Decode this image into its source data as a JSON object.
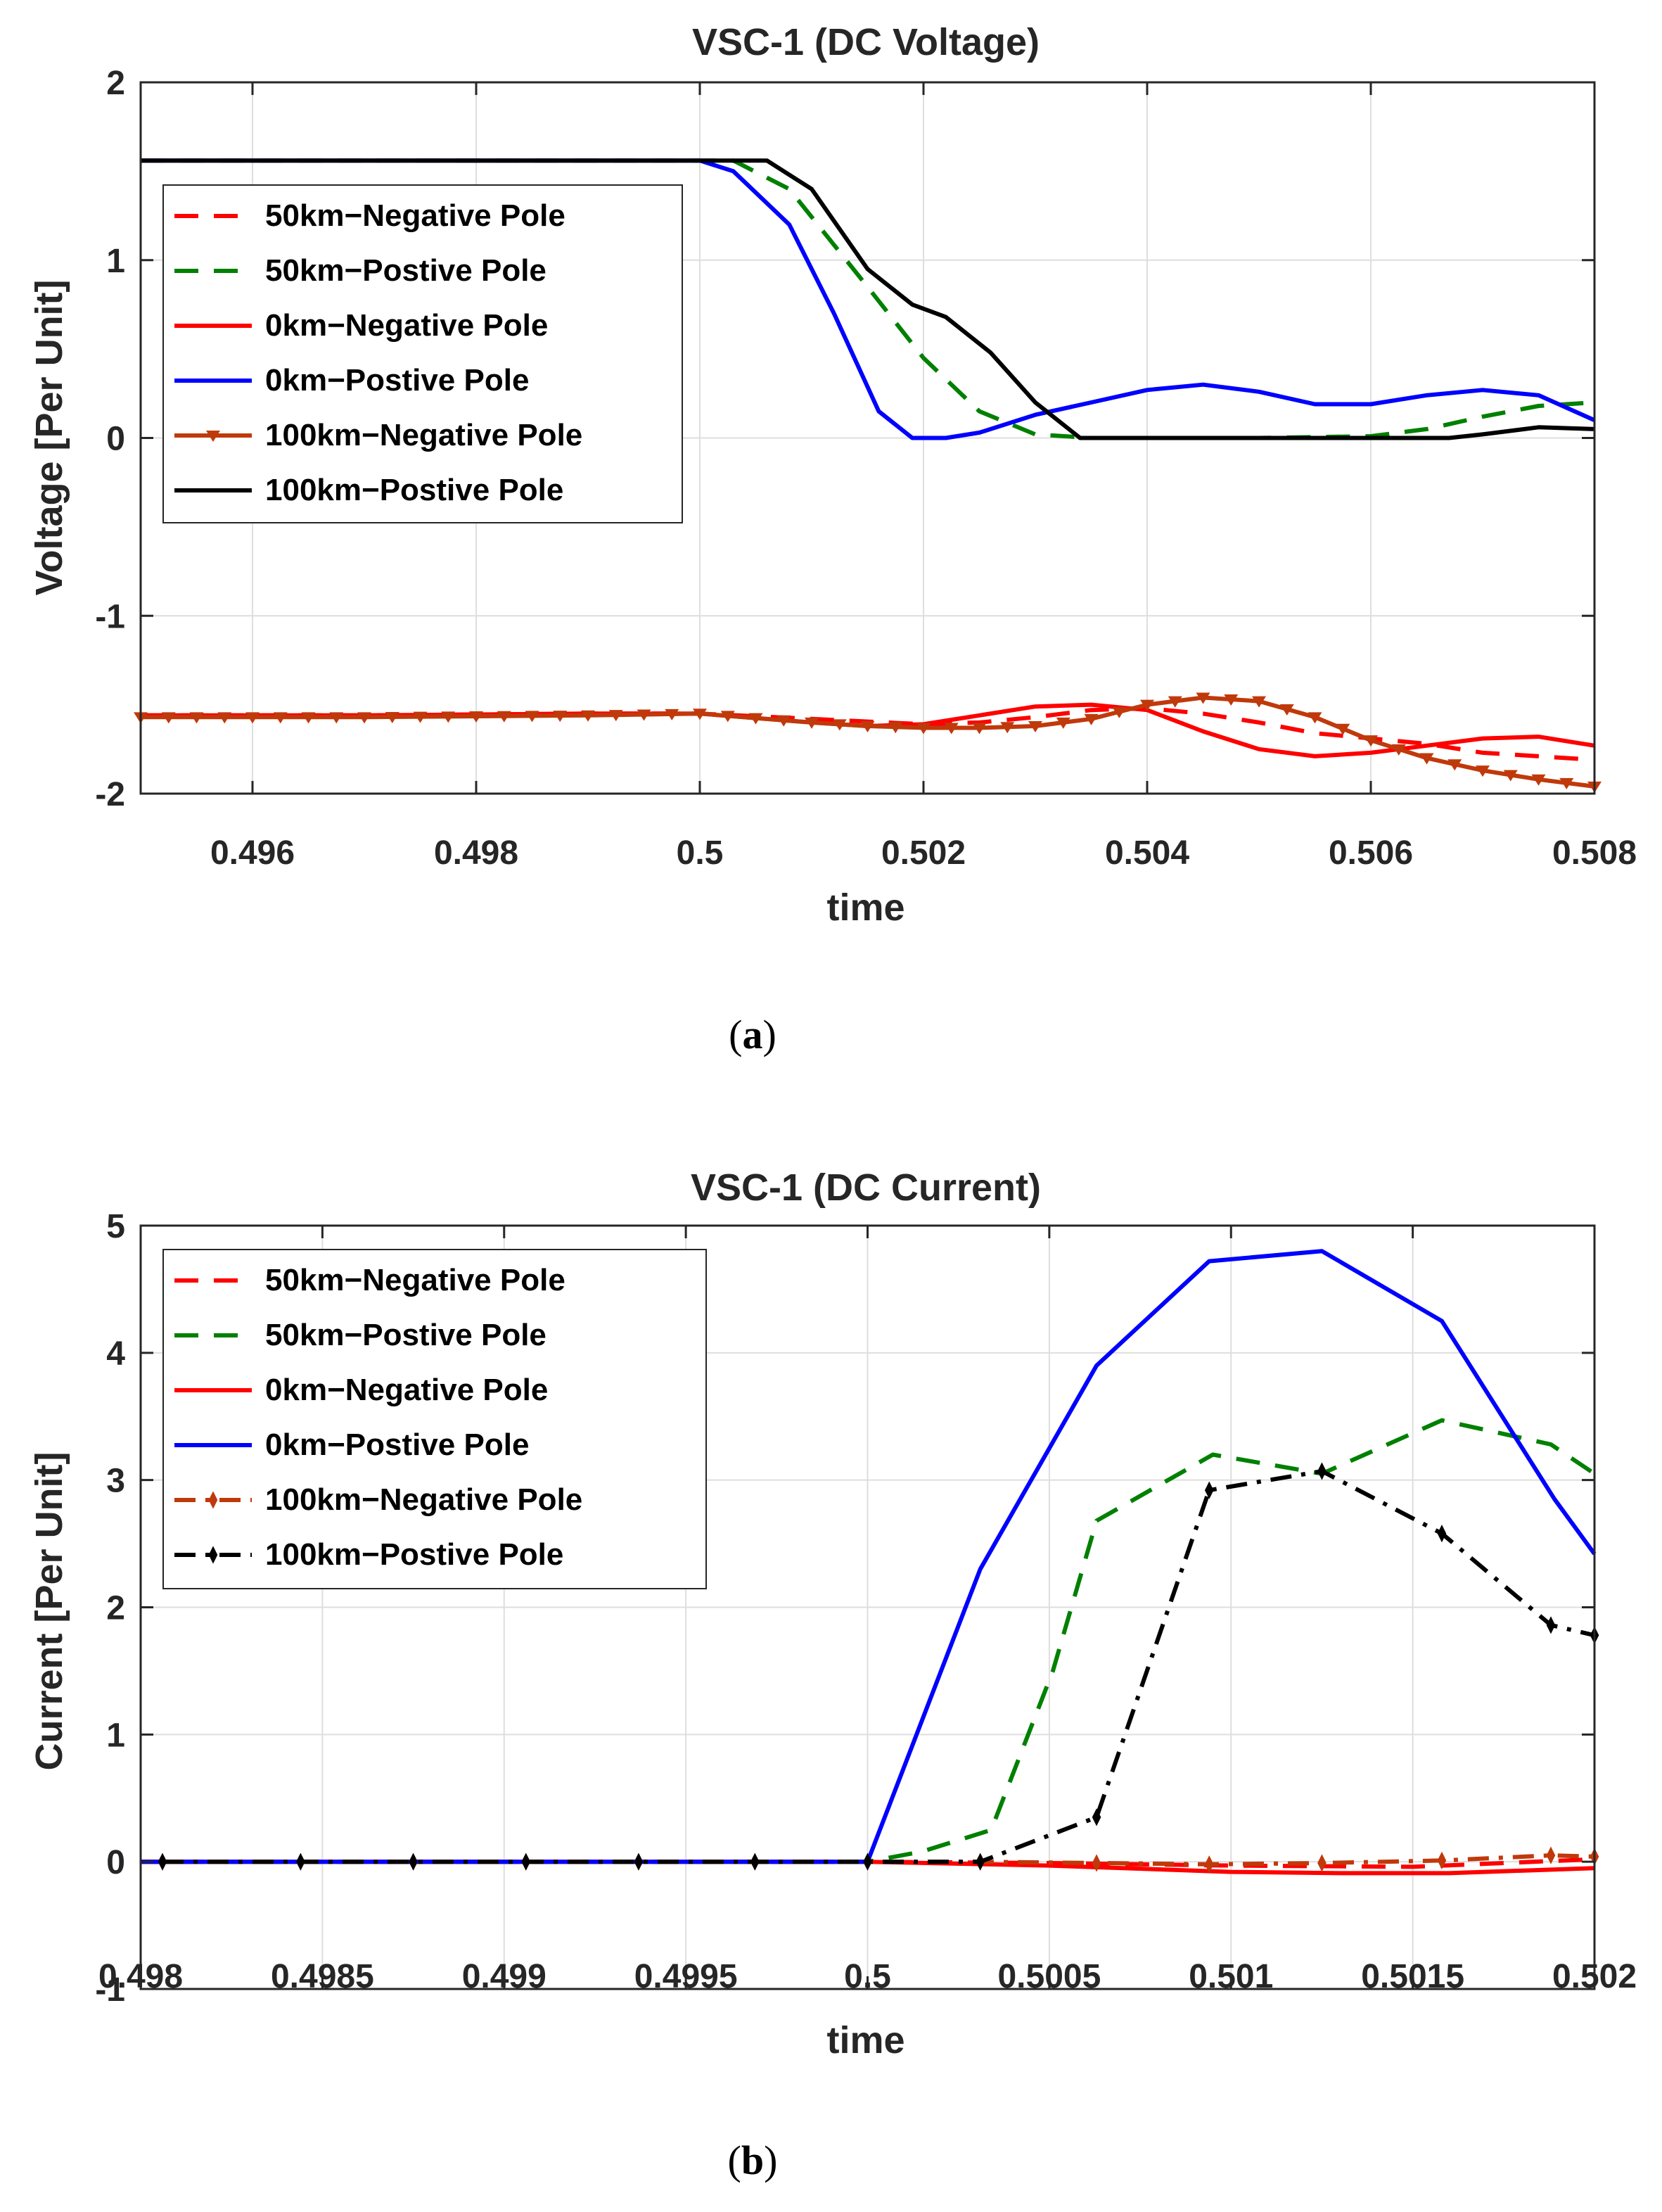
{
  "chart_data": [
    {
      "type": "line",
      "title": "VSC-1 (DC Voltage)",
      "xlabel": "time",
      "ylabel": "Voltage [Per Unit]",
      "xlim": [
        0.495,
        0.508
      ],
      "ylim": [
        -2,
        2
      ],
      "xticks": [
        0.496,
        0.498,
        0.5,
        0.502,
        0.504,
        0.506,
        0.508
      ],
      "xtick_labels": [
        "0.496",
        "0.498",
        "0.5",
        "0.502",
        "0.504",
        "0.506",
        "0.508"
      ],
      "yticks": [
        -2,
        -1,
        0,
        1,
        2
      ],
      "ytick_labels": [
        "-2",
        "-1",
        "0",
        "1",
        "2"
      ],
      "grid": true,
      "legend_position": "top-left",
      "caption": "a",
      "series": [
        {
          "name": "50km−Negative Pole",
          "color": "#ff0000",
          "style": "dashed",
          "x": [
            0.495,
            0.497,
            0.499,
            0.5,
            0.501,
            0.502,
            0.5025,
            0.503,
            0.5035,
            0.504,
            0.5045,
            0.505,
            0.5055,
            0.506,
            0.5065,
            0.507,
            0.5075,
            0.508
          ],
          "y": [
            -1.56,
            -1.56,
            -1.55,
            -1.55,
            -1.58,
            -1.61,
            -1.6,
            -1.57,
            -1.53,
            -1.52,
            -1.55,
            -1.6,
            -1.66,
            -1.69,
            -1.72,
            -1.77,
            -1.79,
            -1.81
          ]
        },
        {
          "name": "50km−Postive Pole",
          "color": "#008000",
          "style": "dashed",
          "x": [
            0.495,
            0.497,
            0.499,
            0.5,
            0.5003,
            0.5008,
            0.5015,
            0.502,
            0.5025,
            0.503,
            0.5035,
            0.504,
            0.505,
            0.506,
            0.5065,
            0.507,
            0.5075,
            0.508
          ],
          "y": [
            1.56,
            1.56,
            1.56,
            1.56,
            1.56,
            1.4,
            0.85,
            0.45,
            0.15,
            0.02,
            0.0,
            0.0,
            0.0,
            0.01,
            0.05,
            0.12,
            0.18,
            0.2
          ]
        },
        {
          "name": "0km−Negative Pole",
          "color": "#ff0000",
          "style": "solid",
          "x": [
            0.495,
            0.497,
            0.499,
            0.5,
            0.501,
            0.5015,
            0.502,
            0.5025,
            0.503,
            0.5035,
            0.504,
            0.5045,
            0.505,
            0.5055,
            0.506,
            0.5065,
            0.507,
            0.5075,
            0.508
          ],
          "y": [
            -1.56,
            -1.56,
            -1.55,
            -1.55,
            -1.6,
            -1.62,
            -1.61,
            -1.56,
            -1.51,
            -1.5,
            -1.53,
            -1.65,
            -1.75,
            -1.79,
            -1.77,
            -1.73,
            -1.69,
            -1.68,
            -1.73
          ]
        },
        {
          "name": "0km−Postive Pole",
          "color": "#0000ff",
          "style": "solid",
          "x": [
            0.495,
            0.497,
            0.499,
            0.5,
            0.5003,
            0.5008,
            0.5012,
            0.5016,
            0.5019,
            0.5022,
            0.5025,
            0.503,
            0.5035,
            0.504,
            0.5045,
            0.505,
            0.5055,
            0.506,
            0.5065,
            0.507,
            0.5075,
            0.508
          ],
          "y": [
            1.56,
            1.56,
            1.56,
            1.56,
            1.5,
            1.2,
            0.7,
            0.15,
            0.0,
            0.0,
            0.03,
            0.13,
            0.2,
            0.27,
            0.3,
            0.26,
            0.19,
            0.19,
            0.24,
            0.27,
            0.24,
            0.1
          ]
        },
        {
          "name": "100km−Negative Pole",
          "color": "#c0390b",
          "style": "solid-marker-triangle",
          "x": [
            0.495,
            0.497,
            0.499,
            0.5,
            0.501,
            0.5015,
            0.502,
            0.5025,
            0.503,
            0.5035,
            0.504,
            0.5045,
            0.505,
            0.5055,
            0.506,
            0.5065,
            0.507,
            0.5075,
            0.508
          ],
          "y": [
            -1.57,
            -1.57,
            -1.56,
            -1.55,
            -1.6,
            -1.62,
            -1.63,
            -1.63,
            -1.62,
            -1.58,
            -1.5,
            -1.46,
            -1.48,
            -1.57,
            -1.7,
            -1.8,
            -1.87,
            -1.92,
            -1.96
          ]
        },
        {
          "name": "100km−Postive Pole",
          "color": "#000000",
          "style": "solid",
          "x": [
            0.495,
            0.497,
            0.499,
            0.5,
            0.5006,
            0.501,
            0.5015,
            0.5019,
            0.5022,
            0.5026,
            0.503,
            0.5034,
            0.504,
            0.505,
            0.506,
            0.5067,
            0.507,
            0.5075,
            0.508
          ],
          "y": [
            1.56,
            1.56,
            1.56,
            1.56,
            1.56,
            1.4,
            0.95,
            0.75,
            0.68,
            0.48,
            0.2,
            0.0,
            0.0,
            0.0,
            0.0,
            0.0,
            0.02,
            0.06,
            0.05
          ]
        }
      ]
    },
    {
      "type": "line",
      "title": "VSC-1 (DC Current)",
      "xlabel": "time",
      "ylabel": "Current [Per Unit]",
      "xlim": [
        0.498,
        0.502
      ],
      "ylim": [
        -1,
        5
      ],
      "xticks": [
        0.498,
        0.4985,
        0.499,
        0.4995,
        0.5,
        0.5005,
        0.501,
        0.5015,
        0.502
      ],
      "xtick_labels": [
        "0.498",
        "0.4985",
        "0.499",
        "0.4995",
        "0.5",
        "0.5005",
        "0.501",
        "0.5015",
        "0.502"
      ],
      "yticks": [
        -1,
        0,
        1,
        2,
        3,
        4,
        5
      ],
      "ytick_labels": [
        "-1",
        "0",
        "1",
        "2",
        "3",
        "4",
        "5"
      ],
      "grid": true,
      "legend_position": "top-left",
      "caption": "b",
      "series": [
        {
          "name": "50km−Negative Pole",
          "color": "#ff0000",
          "style": "dashed",
          "x": [
            0.498,
            0.499,
            0.5,
            0.5005,
            0.501,
            0.5015,
            0.502
          ],
          "y": [
            0,
            0,
            0,
            -0.01,
            -0.03,
            -0.04,
            0.02
          ]
        },
        {
          "name": "50km−Postive Pole",
          "color": "#008000",
          "style": "dashed",
          "x": [
            0.498,
            0.499,
            0.5,
            0.50015,
            0.50034,
            0.50051,
            0.50063,
            0.50095,
            0.50125,
            0.50158,
            0.50188,
            0.502
          ],
          "y": [
            0,
            0,
            0,
            0.08,
            0.25,
            1.5,
            2.68,
            3.2,
            3.05,
            3.47,
            3.28,
            3.05
          ]
        },
        {
          "name": "0km−Negative Pole",
          "color": "#ff0000",
          "style": "solid",
          "x": [
            0.498,
            0.499,
            0.5,
            0.5005,
            0.501,
            0.5013,
            0.5016,
            0.502
          ],
          "y": [
            0,
            0,
            0,
            -0.03,
            -0.08,
            -0.09,
            -0.09,
            -0.05
          ]
        },
        {
          "name": "0km−Postive Pole",
          "color": "#0000ff",
          "style": "solid",
          "x": [
            0.498,
            0.499,
            0.5,
            0.50031,
            0.50063,
            0.50094,
            0.50125,
            0.50158,
            0.50189,
            0.502
          ],
          "y": [
            0,
            0,
            0,
            2.3,
            3.9,
            4.72,
            4.8,
            4.25,
            2.85,
            2.42
          ]
        },
        {
          "name": "100km−Negative Pole",
          "color": "#c0390b",
          "style": "dashdot-marker-diamond",
          "x": [
            0.49806,
            0.49844,
            0.49875,
            0.49906,
            0.49937,
            0.49969,
            0.5,
            0.50031,
            0.50063,
            0.50094,
            0.50125,
            0.50158,
            0.50188,
            0.502
          ],
          "y": [
            0,
            0,
            0,
            0,
            0,
            0,
            0,
            0,
            -0.01,
            -0.02,
            -0.01,
            0.01,
            0.05,
            0.04
          ]
        },
        {
          "name": "100km−Postive Pole",
          "color": "#000000",
          "style": "dashdot-marker-diamond",
          "x": [
            0.49806,
            0.49844,
            0.49875,
            0.49906,
            0.49937,
            0.49969,
            0.5,
            0.50031,
            0.50063,
            0.50094,
            0.50125,
            0.50158,
            0.50188,
            0.502
          ],
          "y": [
            0,
            0,
            0,
            0,
            0,
            0,
            0,
            0,
            0.35,
            2.92,
            3.07,
            2.58,
            1.86,
            1.78
          ]
        }
      ]
    }
  ]
}
